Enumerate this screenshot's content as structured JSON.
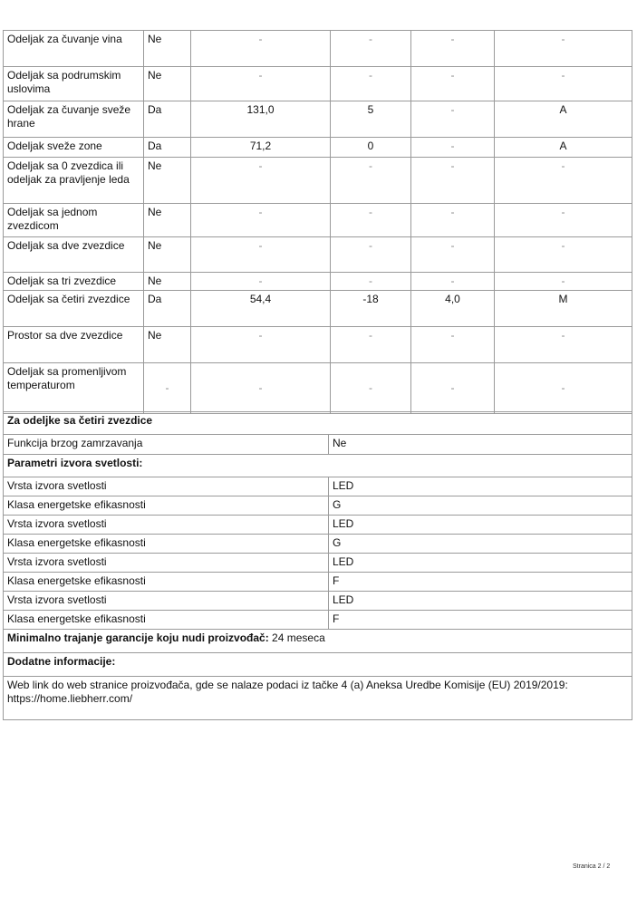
{
  "compartments": [
    {
      "name": "Odeljak za čuvanje vina",
      "present": "Ne",
      "volume": "-",
      "temp": "-",
      "capacity": "-",
      "class": "-"
    },
    {
      "name": "Odeljak sa podrumskim uslovima",
      "present": "Ne",
      "volume": "-",
      "temp": "-",
      "capacity": "-",
      "class": "-"
    },
    {
      "name": "Odeljak za čuvanje sveže hrane",
      "present": "Da",
      "volume": "131,0",
      "temp": "5",
      "capacity": "-",
      "class": "A"
    },
    {
      "name": "Odeljak sveže zone",
      "present": "Da",
      "volume": "71,2",
      "temp": "0",
      "capacity": "-",
      "class": "A"
    },
    {
      "name": "Odeljak sa 0 zvezdica ili odeljak za pravljenje leda",
      "present": "Ne",
      "volume": "-",
      "temp": "-",
      "capacity": "-",
      "class": "-"
    },
    {
      "name": "Odeljak sa jednom zvezdicom",
      "present": "Ne",
      "volume": "-",
      "temp": "-",
      "capacity": "-",
      "class": "-"
    },
    {
      "name": "Odeljak sa dve zvezdice",
      "present": "Ne",
      "volume": "-",
      "temp": "-",
      "capacity": "-",
      "class": "-"
    },
    {
      "name": "Odeljak sa tri zvezdice",
      "present": "Ne",
      "volume": "-",
      "temp": "-",
      "capacity": "-",
      "class": "-"
    },
    {
      "name": "Odeljak sa četiri zvezdice",
      "present": "Da",
      "volume": "54,4",
      "temp": "-18",
      "capacity": "4,0",
      "class": "M"
    },
    {
      "name": "Prostor sa dve zvezdice",
      "present": "Ne",
      "volume": "-",
      "temp": "-",
      "capacity": "-",
      "class": "-"
    },
    {
      "name": "Odeljak sa promenljivom temperaturom",
      "present": "-",
      "volume": "-",
      "temp": "-",
      "capacity": "-",
      "class": "-"
    }
  ],
  "four_star": {
    "heading": "Za odeljke sa četiri zvezdice",
    "fast_freeze_label": "Funkcija brzog zamrzavanja",
    "fast_freeze_value": "Ne"
  },
  "light": {
    "heading": "Parametri izvora svetlosti:",
    "rows": [
      {
        "label": "Vrsta izvora svetlosti",
        "value": "LED"
      },
      {
        "label": "Klasa energetske efikasnosti",
        "value": "G"
      },
      {
        "label": "Vrsta izvora svetlosti",
        "value": "LED"
      },
      {
        "label": "Klasa energetske efikasnosti",
        "value": "G"
      },
      {
        "label": "Vrsta izvora svetlosti",
        "value": "LED"
      },
      {
        "label": "Klasa energetske efikasnosti",
        "value": "F"
      },
      {
        "label": "Vrsta izvora svetlosti",
        "value": "LED"
      },
      {
        "label": "Klasa energetske efikasnosti",
        "value": "F"
      }
    ]
  },
  "warranty": {
    "label": "Minimalno trajanje garancije koju nudi proizvođač:",
    "value": " 24 meseca"
  },
  "additional": {
    "heading": "Dodatne informacije:",
    "text": "Web link do web stranice proizvođača, gde se nalaze podaci iz tačke 4 (a) Aneksa Uredbe Komisije (EU) 2019/2019:  https://home.liebherr.com/"
  },
  "footer": {
    "page": "Stranica 2 / 2"
  }
}
